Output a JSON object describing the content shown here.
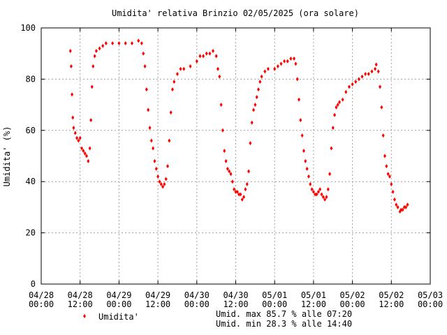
{
  "chart_data": {
    "type": "scatter",
    "title": "Umidita' relativa Brinzio 02/05/2025 (ora solare)",
    "ylabel": "Umidita' (%)",
    "xlabel": "",
    "ylim": [
      0,
      100
    ],
    "y_ticks": [
      "0",
      "20",
      "40",
      "60",
      "80",
      "100"
    ],
    "x_ticks": [
      {
        "date": "04/28",
        "time": "00:00"
      },
      {
        "date": "04/28",
        "time": "12:00"
      },
      {
        "date": "04/29",
        "time": "00:00"
      },
      {
        "date": "04/29",
        "time": "12:00"
      },
      {
        "date": "04/30",
        "time": "00:00"
      },
      {
        "date": "04/30",
        "time": "12:00"
      },
      {
        "date": "05/01",
        "time": "00:00"
      },
      {
        "date": "05/01",
        "time": "12:00"
      },
      {
        "date": "05/02",
        "time": "00:00"
      },
      {
        "date": "05/02",
        "time": "12:00"
      },
      {
        "date": "05/03",
        "time": "00:00"
      }
    ],
    "xlim": [
      "04/28 00:00",
      "05/03 00:00"
    ],
    "grid": true,
    "legend_position": "bottom-left",
    "series": [
      {
        "name": "Umidita'",
        "color": "#ff0000",
        "marker": "diamond",
        "points": [
          [
            "04/28 09:00",
            91
          ],
          [
            "04/28 09:15",
            85
          ],
          [
            "04/28 09:30",
            74
          ],
          [
            "04/28 09:45",
            65
          ],
          [
            "04/28 10:00",
            61
          ],
          [
            "04/28 10:30",
            59
          ],
          [
            "04/28 11:00",
            57
          ],
          [
            "04/28 11:30",
            56
          ],
          [
            "04/28 12:00",
            57
          ],
          [
            "04/28 12:30",
            53
          ],
          [
            "04/28 13:00",
            52
          ],
          [
            "04/28 13:30",
            51
          ],
          [
            "04/28 14:00",
            50
          ],
          [
            "04/28 14:30",
            48
          ],
          [
            "04/28 15:00",
            53
          ],
          [
            "04/28 15:20",
            64
          ],
          [
            "04/28 15:40",
            77
          ],
          [
            "04/28 16:00",
            85
          ],
          [
            "04/28 16:30",
            89
          ],
          [
            "04/28 17:00",
            91
          ],
          [
            "04/28 18:00",
            92
          ],
          [
            "04/28 19:00",
            93
          ],
          [
            "04/28 20:00",
            94
          ],
          [
            "04/28 22:00",
            94
          ],
          [
            "04/29 00:00",
            94
          ],
          [
            "04/29 02:00",
            94
          ],
          [
            "04/29 04:00",
            94
          ],
          [
            "04/29 06:00",
            95
          ],
          [
            "04/29 07:00",
            94
          ],
          [
            "04/29 07:30",
            90
          ],
          [
            "04/29 08:00",
            85
          ],
          [
            "04/29 08:30",
            76
          ],
          [
            "04/29 09:00",
            68
          ],
          [
            "04/29 09:30",
            61
          ],
          [
            "04/29 10:00",
            56
          ],
          [
            "04/29 10:30",
            53
          ],
          [
            "04/29 11:00",
            48
          ],
          [
            "04/29 11:30",
            45
          ],
          [
            "04/29 12:00",
            42
          ],
          [
            "04/29 12:30",
            40
          ],
          [
            "04/29 13:00",
            39
          ],
          [
            "04/29 13:30",
            38
          ],
          [
            "04/29 14:00",
            39
          ],
          [
            "04/29 14:30",
            41
          ],
          [
            "04/29 15:00",
            46
          ],
          [
            "04/29 15:30",
            56
          ],
          [
            "04/29 16:00",
            67
          ],
          [
            "04/29 16:30",
            76
          ],
          [
            "04/29 17:00",
            79
          ],
          [
            "04/29 18:00",
            82
          ],
          [
            "04/29 19:00",
            84
          ],
          [
            "04/29 20:00",
            84
          ],
          [
            "04/29 22:00",
            85
          ],
          [
            "04/30 00:00",
            87
          ],
          [
            "04/30 01:00",
            89
          ],
          [
            "04/30 02:00",
            89
          ],
          [
            "04/30 03:00",
            90
          ],
          [
            "04/30 04:00",
            90
          ],
          [
            "04/30 05:00",
            91
          ],
          [
            "04/30 06:00",
            89
          ],
          [
            "04/30 06:30",
            84
          ],
          [
            "04/30 07:00",
            81
          ],
          [
            "04/30 07:30",
            70
          ],
          [
            "04/30 08:00",
            60
          ],
          [
            "04/30 08:30",
            52
          ],
          [
            "04/30 09:00",
            48
          ],
          [
            "04/30 09:30",
            45
          ],
          [
            "04/30 10:00",
            44
          ],
          [
            "04/30 10:30",
            43
          ],
          [
            "04/30 11:00",
            40
          ],
          [
            "04/30 11:30",
            37
          ],
          [
            "04/30 12:00",
            36
          ],
          [
            "04/30 12:30",
            36
          ],
          [
            "04/30 13:00",
            35
          ],
          [
            "04/30 13:30",
            35
          ],
          [
            "04/30 14:00",
            33
          ],
          [
            "04/30 14:30",
            34
          ],
          [
            "04/30 15:00",
            37
          ],
          [
            "04/30 15:30",
            39
          ],
          [
            "04/30 16:00",
            44
          ],
          [
            "04/30 16:30",
            55
          ],
          [
            "04/30 17:00",
            63
          ],
          [
            "04/30 17:30",
            68
          ],
          [
            "04/30 18:00",
            70
          ],
          [
            "04/30 18:30",
            73
          ],
          [
            "04/30 19:00",
            76
          ],
          [
            "04/30 19:30",
            79
          ],
          [
            "04/30 20:00",
            81
          ],
          [
            "04/30 21:00",
            83
          ],
          [
            "04/30 22:00",
            84
          ],
          [
            "05/01 00:00",
            84
          ],
          [
            "05/01 01:00",
            85
          ],
          [
            "05/01 02:00",
            86
          ],
          [
            "05/01 03:00",
            87
          ],
          [
            "05/01 04:00",
            87
          ],
          [
            "05/01 05:00",
            88
          ],
          [
            "05/01 06:00",
            88
          ],
          [
            "05/01 06:30",
            86
          ],
          [
            "05/01 07:00",
            80
          ],
          [
            "05/01 07:30",
            72
          ],
          [
            "05/01 08:00",
            64
          ],
          [
            "05/01 08:30",
            58
          ],
          [
            "05/01 09:00",
            52
          ],
          [
            "05/01 09:30",
            48
          ],
          [
            "05/01 10:00",
            45
          ],
          [
            "05/01 10:30",
            42
          ],
          [
            "05/01 11:00",
            39
          ],
          [
            "05/01 11:30",
            37
          ],
          [
            "05/01 12:00",
            36
          ],
          [
            "05/01 12:30",
            35
          ],
          [
            "05/01 13:00",
            35
          ],
          [
            "05/01 13:30",
            36
          ],
          [
            "05/01 14:00",
            37
          ],
          [
            "05/01 14:30",
            35
          ],
          [
            "05/01 15:00",
            34
          ],
          [
            "05/01 15:30",
            33
          ],
          [
            "05/01 16:00",
            34
          ],
          [
            "05/01 16:30",
            37
          ],
          [
            "05/01 17:00",
            43
          ],
          [
            "05/01 17:30",
            53
          ],
          [
            "05/01 18:00",
            61
          ],
          [
            "05/01 18:30",
            66
          ],
          [
            "05/01 19:00",
            69
          ],
          [
            "05/01 19:30",
            70
          ],
          [
            "05/01 20:00",
            71
          ],
          [
            "05/01 21:00",
            72
          ],
          [
            "05/01 22:00",
            75
          ],
          [
            "05/01 23:00",
            77
          ],
          [
            "05/02 00:00",
            78
          ],
          [
            "05/02 01:00",
            79
          ],
          [
            "05/02 02:00",
            80
          ],
          [
            "05/02 03:00",
            81
          ],
          [
            "05/02 04:00",
            82
          ],
          [
            "05/02 05:00",
            82
          ],
          [
            "05/02 06:00",
            83
          ],
          [
            "05/02 07:00",
            84
          ],
          [
            "05/02 07:20",
            85.7
          ],
          [
            "05/02 08:00",
            83
          ],
          [
            "05/02 08:30",
            77
          ],
          [
            "05/02 09:00",
            69
          ],
          [
            "05/02 09:30",
            58
          ],
          [
            "05/02 10:00",
            50
          ],
          [
            "05/02 10:30",
            46
          ],
          [
            "05/02 11:00",
            43
          ],
          [
            "05/02 11:30",
            42
          ],
          [
            "05/02 12:00",
            39
          ],
          [
            "05/02 12:30",
            36
          ],
          [
            "05/02 13:00",
            33
          ],
          [
            "05/02 13:30",
            31
          ],
          [
            "05/02 14:00",
            30
          ],
          [
            "05/02 14:40",
            28.3
          ],
          [
            "05/02 15:00",
            29
          ],
          [
            "05/02 15:30",
            29
          ],
          [
            "05/02 16:00",
            30
          ],
          [
            "05/02 16:30",
            30
          ],
          [
            "05/02 17:00",
            31
          ]
        ]
      }
    ],
    "annotations": [
      "Umid. max 85.7 % alle 07:20",
      "Umid. min 28.3 % alle 14:40"
    ]
  }
}
